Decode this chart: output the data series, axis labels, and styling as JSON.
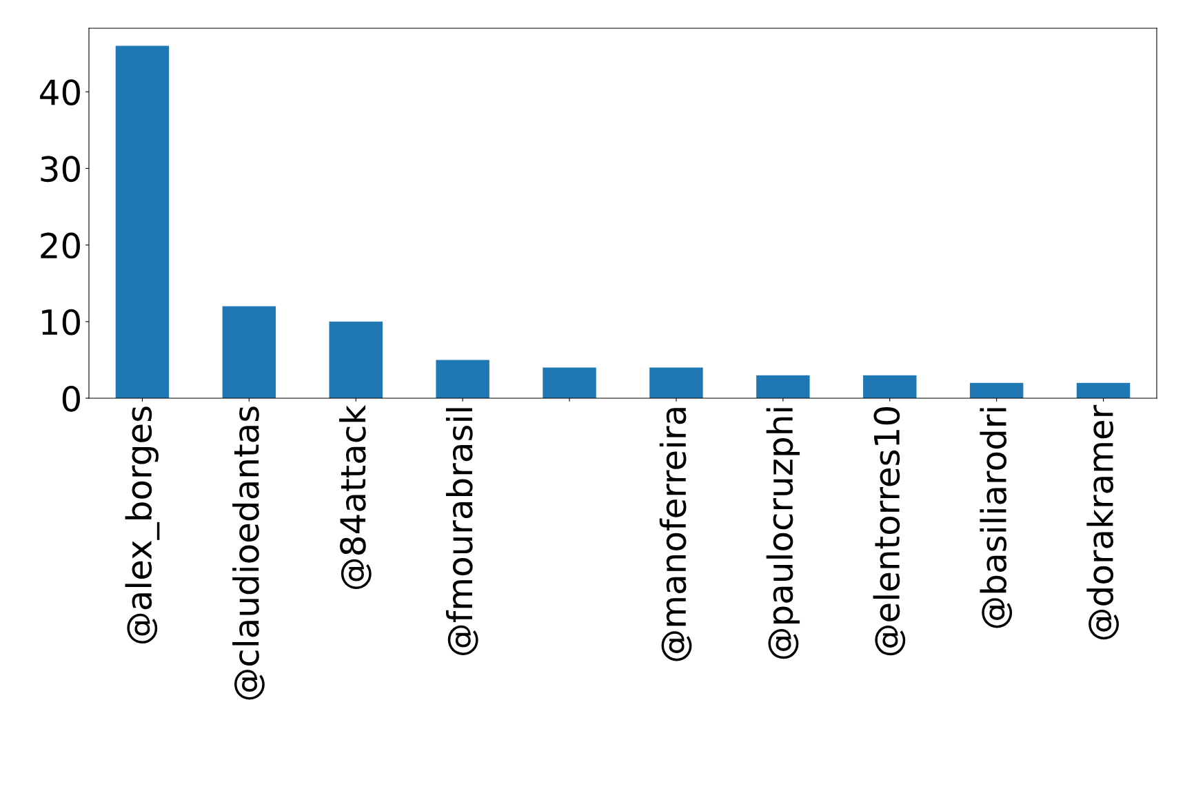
{
  "chart_data": {
    "type": "bar",
    "categories": [
      "@alex_borges",
      "@claudioedantas",
      "@84attack",
      "@fmourabrasil",
      null,
      "@manoferreira",
      "@paulocruzphi",
      "@elentorres10",
      "@basiliarodri",
      "@dorakramer"
    ],
    "values": [
      46,
      12,
      10,
      5,
      4,
      4,
      3,
      3,
      2,
      2
    ],
    "color": "#1f77b4",
    "ylim": [
      0,
      48.3
    ],
    "yticks": [
      0,
      10,
      20,
      30,
      40
    ],
    "grid": false,
    "legend": false
  }
}
